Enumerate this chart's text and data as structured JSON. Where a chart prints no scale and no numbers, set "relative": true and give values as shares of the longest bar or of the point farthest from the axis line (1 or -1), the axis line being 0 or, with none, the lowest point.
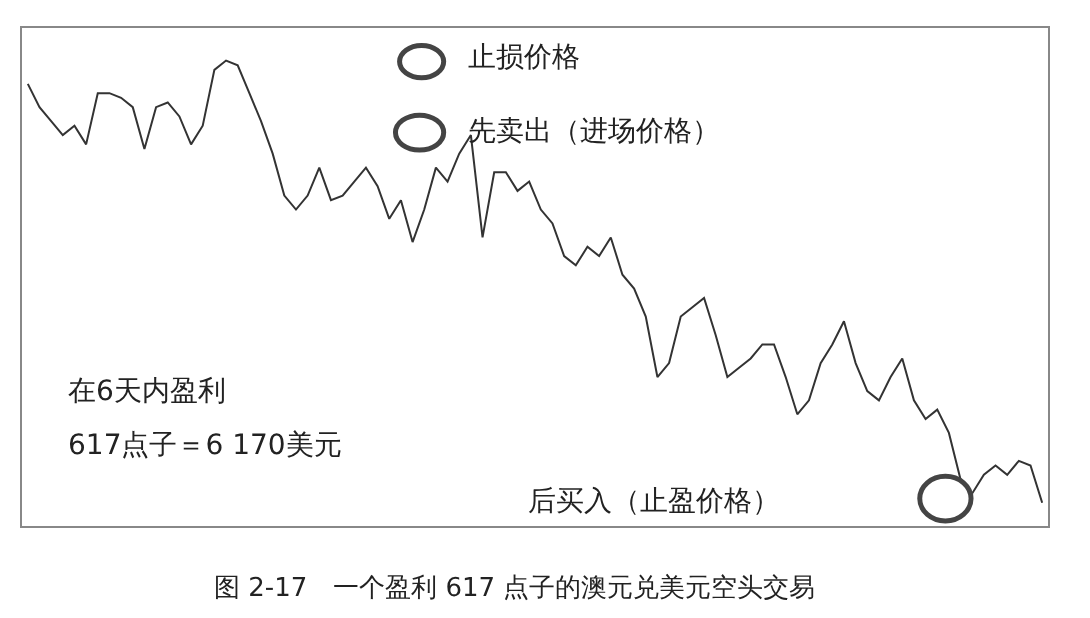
{
  "chart_data": {
    "type": "line",
    "relative": true,
    "marker": "none",
    "line_style": "solid",
    "categories": [
      null,
      null,
      null,
      null,
      null,
      null,
      null,
      null,
      null,
      null,
      null,
      null,
      null,
      null,
      null,
      null,
      null,
      null,
      null,
      null,
      null,
      null,
      null,
      null,
      null,
      null,
      null,
      null,
      null,
      null,
      null,
      null,
      null,
      null,
      null,
      null,
      null,
      null,
      null,
      null,
      null,
      null,
      null,
      null,
      null,
      null,
      null,
      null,
      null,
      null,
      null,
      null,
      null,
      null,
      null,
      null,
      null,
      null,
      null,
      null,
      null,
      null,
      null,
      null,
      null,
      null,
      null,
      null,
      null,
      null,
      null,
      null,
      null,
      null,
      null,
      null,
      null,
      null,
      null,
      null,
      null,
      null,
      null,
      null,
      null,
      null,
      null,
      null
    ],
    "series": [
      {
        "color": "#333333",
        "values": [
          0.95,
          0.9,
          0.87,
          0.84,
          0.86,
          0.82,
          0.93,
          0.93,
          0.92,
          0.9,
          0.81,
          0.9,
          0.91,
          0.88,
          0.82,
          0.86,
          0.98,
          1.0,
          0.99,
          0.93,
          0.87,
          0.8,
          0.71,
          0.68,
          0.71,
          0.77,
          0.7,
          0.71,
          0.74,
          0.77,
          0.73,
          0.66,
          0.7,
          0.61,
          0.68,
          0.77,
          0.74,
          0.8,
          0.84,
          0.62,
          0.76,
          0.76,
          0.72,
          0.74,
          0.68,
          0.65,
          0.58,
          0.56,
          0.6,
          0.58,
          0.62,
          0.54,
          0.51,
          0.45,
          0.32,
          0.35,
          0.45,
          0.47,
          0.49,
          0.41,
          0.32,
          0.34,
          0.36,
          0.39,
          0.39,
          0.32,
          0.24,
          0.27,
          0.35,
          0.39,
          0.44,
          0.35,
          0.29,
          0.27,
          0.32,
          0.36,
          0.27,
          0.23,
          0.25,
          0.2,
          0.1,
          0.07,
          0.11,
          0.13,
          0.11,
          0.14,
          0.13,
          0.05
        ]
      }
    ],
    "annotations": [
      "止损价格",
      "先卖出（进场价格）",
      "在6天内盈利",
      "617点子＝6 170美元",
      "后买入（止盈价格）",
      "图 2-17　一个盈利 617 点子的澳元兑美元空头交易"
    ]
  }
}
